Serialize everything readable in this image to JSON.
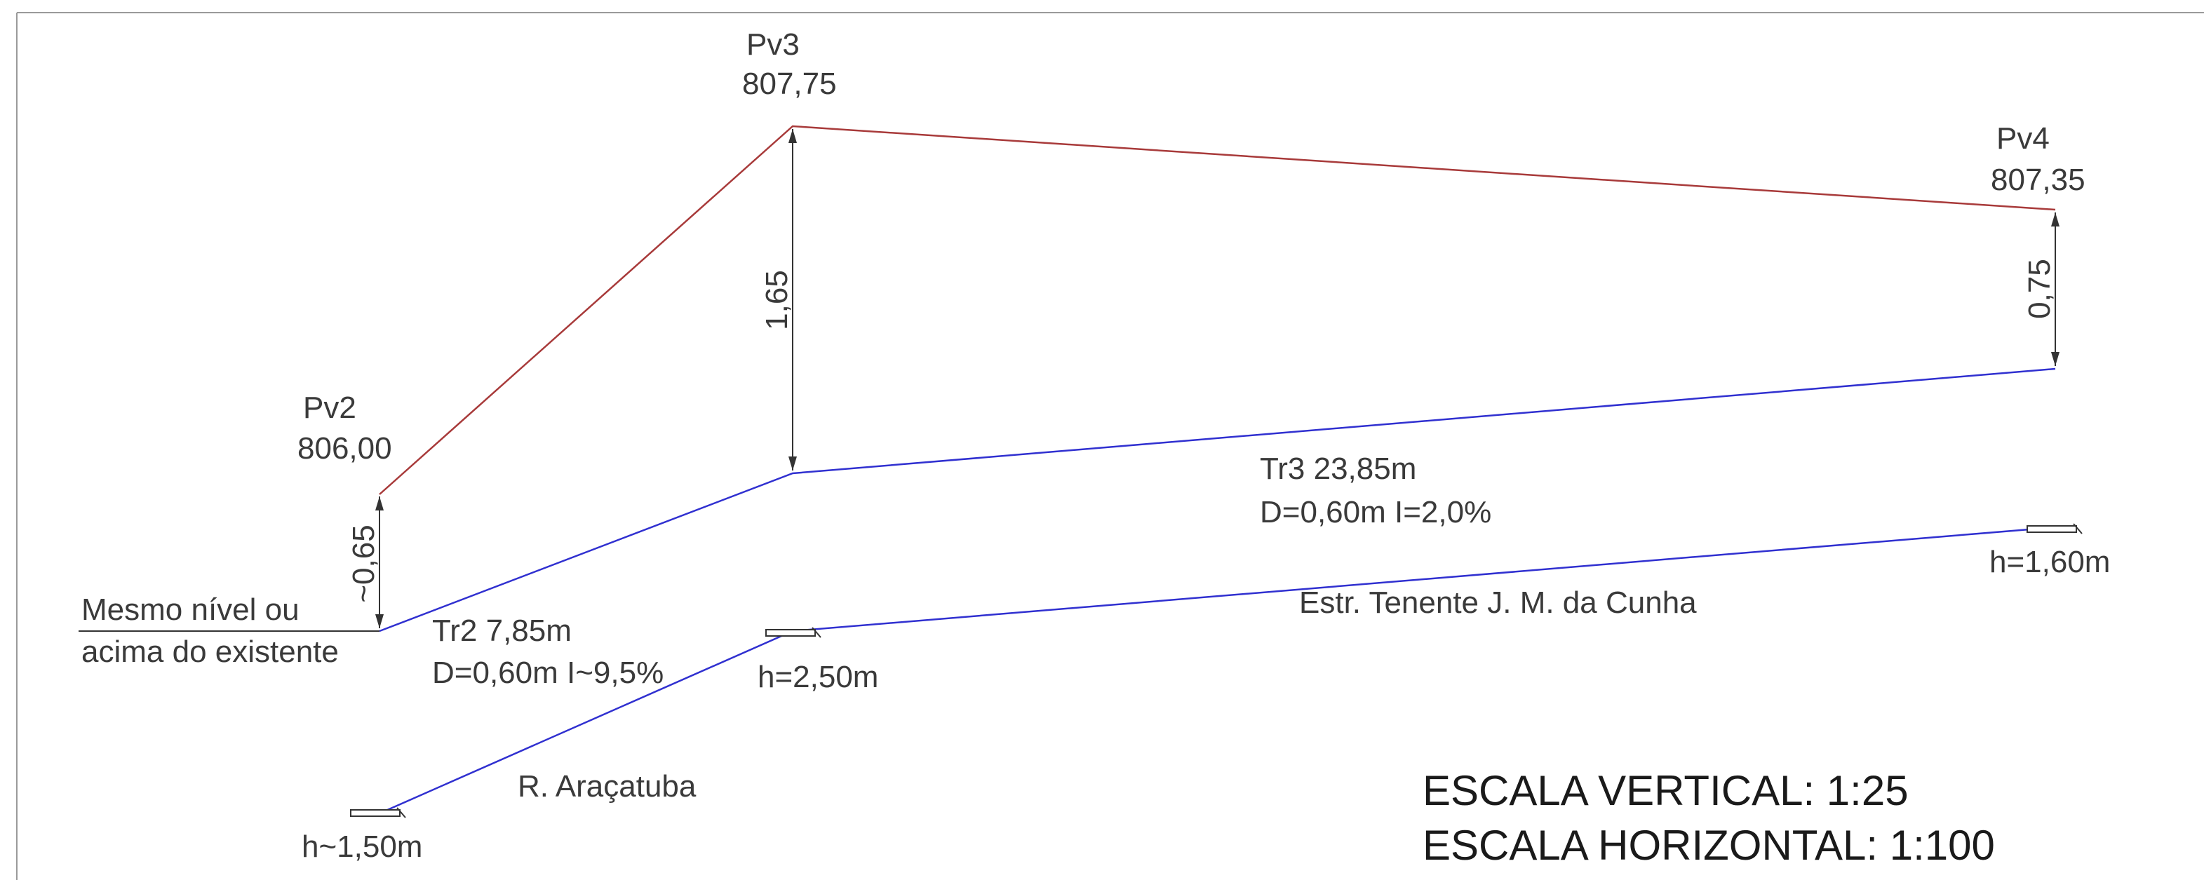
{
  "colors": {
    "ground_line": "#a83a3a",
    "pipe_line": "#3030d0",
    "street_line": "#3030d0",
    "dimension": "#333333",
    "text": "#3a3a3a"
  },
  "manholes": [
    {
      "name": "Pv2",
      "elevation": "806,00",
      "depth_label": "~0,65"
    },
    {
      "name": "Pv3",
      "elevation": "807,75",
      "depth_label": "1,65"
    },
    {
      "name": "Pv4",
      "elevation": "807,35",
      "depth_label": "0,75"
    }
  ],
  "segments": [
    {
      "name_length": "Tr2 7,85m",
      "spec": "D=0,60m I~9,5%"
    },
    {
      "name_length": "Tr3 23,85m",
      "spec": "D=0,60m I=2,0%"
    }
  ],
  "level_note": {
    "line1": "Mesmo nível ou",
    "line2": "acima do existente"
  },
  "streets": [
    {
      "name": "R. Araçatuba"
    },
    {
      "name": "Estr. Tenente J. M. da Cunha"
    }
  ],
  "markers": [
    {
      "label": "h~1,50m"
    },
    {
      "label": "h=2,50m"
    },
    {
      "label": "h=1,60m"
    }
  ],
  "scales": {
    "vertical": "ESCALA VERTICAL: 1:25",
    "horizontal": "ESCALA HORIZONTAL: 1:100"
  }
}
